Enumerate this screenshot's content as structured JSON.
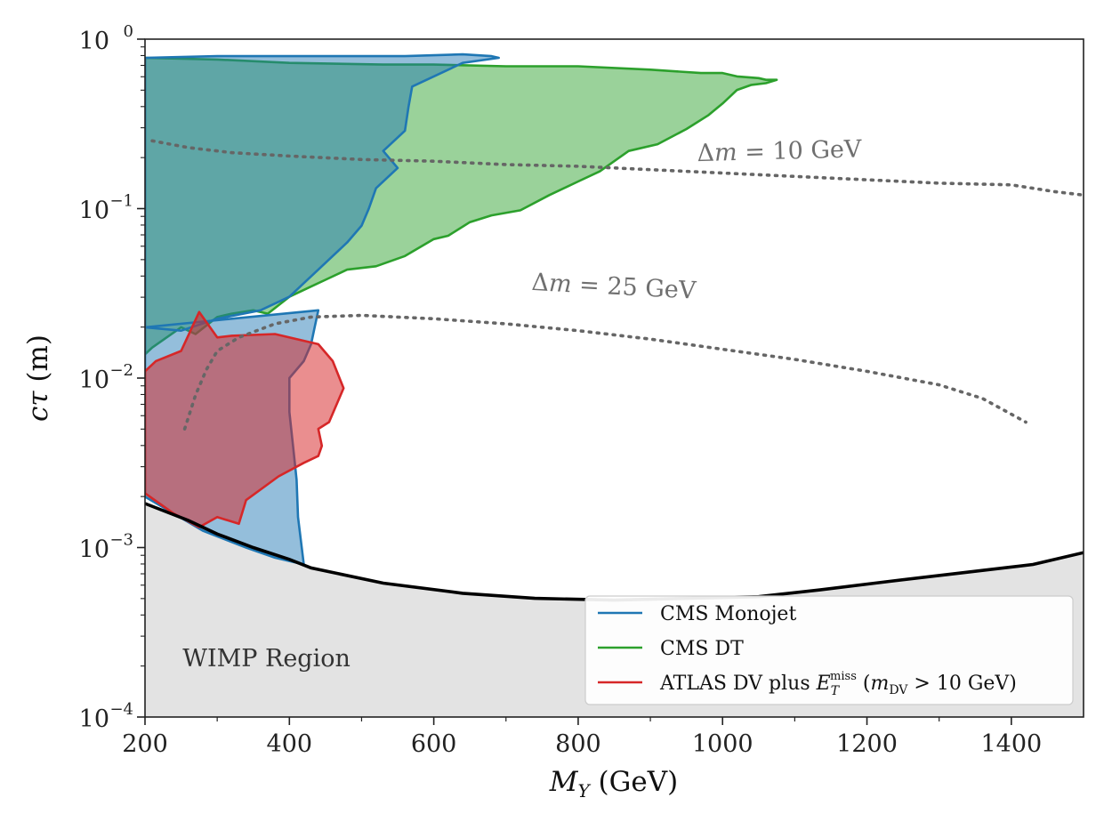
{
  "chart_data": {
    "type": "area",
    "xlabel": "M_Y (GeV)",
    "ylabel": "cτ (m)",
    "xlim": [
      200,
      1500
    ],
    "ylim_log10": [
      -4,
      0
    ],
    "x_ticks": [
      200,
      400,
      600,
      800,
      1000,
      1200,
      1400
    ],
    "x_tick_labels": [
      "200",
      "400",
      "600",
      "800",
      "1000",
      "1200",
      "1400"
    ],
    "y_ticks_log10": [
      -4,
      -3,
      -2,
      -1,
      0
    ],
    "y_tick_labels": [
      {
        "base": "10",
        "exp": "−4"
      },
      {
        "base": "10",
        "exp": "−3"
      },
      {
        "base": "10",
        "exp": "−2"
      },
      {
        "base": "10",
        "exp": "−1"
      },
      {
        "base": "10",
        "exp": "0"
      }
    ],
    "colors": {
      "monojet": "#1f77b4",
      "dt": "#2ca02c",
      "atlas": "#d62728",
      "wimp_fill": "#e3e3e3",
      "boundary": "#000000",
      "dotted": "#666666"
    },
    "regions": [
      {
        "key": "dt",
        "name": "CMS DT",
        "points": [
          [
            200,
            -1.86
          ],
          [
            210,
            -1.82
          ],
          [
            250,
            -1.7
          ],
          [
            270,
            -1.74
          ],
          [
            300,
            -1.64
          ],
          [
            320,
            -1.62
          ],
          [
            350,
            -1.6
          ],
          [
            370,
            -1.62
          ],
          [
            400,
            -1.52
          ],
          [
            430,
            -1.46
          ],
          [
            450,
            -1.42
          ],
          [
            480,
            -1.36
          ],
          [
            520,
            -1.34
          ],
          [
            560,
            -1.28
          ],
          [
            600,
            -1.18
          ],
          [
            620,
            -1.16
          ],
          [
            650,
            -1.08
          ],
          [
            680,
            -1.04
          ],
          [
            720,
            -1.01
          ],
          [
            760,
            -0.92
          ],
          [
            800,
            -0.84
          ],
          [
            830,
            -0.78
          ],
          [
            870,
            -0.66
          ],
          [
            910,
            -0.62
          ],
          [
            950,
            -0.53
          ],
          [
            980,
            -0.45
          ],
          [
            1000,
            -0.38
          ],
          [
            1010,
            -0.34
          ],
          [
            1020,
            -0.3
          ],
          [
            1040,
            -0.27
          ],
          [
            1060,
            -0.26
          ],
          [
            1075,
            -0.24
          ],
          [
            1060,
            -0.24
          ],
          [
            1050,
            -0.23
          ],
          [
            1020,
            -0.22
          ],
          [
            1000,
            -0.2
          ],
          [
            970,
            -0.2
          ],
          [
            900,
            -0.18
          ],
          [
            800,
            -0.16
          ],
          [
            700,
            -0.16
          ],
          [
            600,
            -0.15
          ],
          [
            530,
            -0.15
          ],
          [
            400,
            -0.14
          ],
          [
            300,
            -0.12
          ],
          [
            200,
            -0.11
          ]
        ]
      },
      {
        "key": "monojet",
        "name": "CMS Monojet",
        "points": [
          [
            200,
            -1.7
          ],
          [
            250,
            -1.72
          ],
          [
            300,
            -1.65
          ],
          [
            360,
            -1.6
          ],
          [
            400,
            -1.52
          ],
          [
            420,
            -1.44
          ],
          [
            440,
            -1.36
          ],
          [
            460,
            -1.28
          ],
          [
            480,
            -1.2
          ],
          [
            500,
            -1.1
          ],
          [
            510,
            -1.0
          ],
          [
            520,
            -0.88
          ],
          [
            550,
            -0.76
          ],
          [
            530,
            -0.66
          ],
          [
            560,
            -0.54
          ],
          [
            565,
            -0.4
          ],
          [
            570,
            -0.28
          ],
          [
            600,
            -0.22
          ],
          [
            640,
            -0.14
          ],
          [
            690,
            -0.11
          ],
          [
            680,
            -0.1
          ],
          [
            640,
            -0.09
          ],
          [
            560,
            -0.1
          ],
          [
            500,
            -0.1
          ],
          [
            400,
            -0.1
          ],
          [
            300,
            -0.1
          ],
          [
            200,
            -0.11
          ],
          [
            200,
            -2.7
          ],
          [
            240,
            -2.8
          ],
          [
            280,
            -2.9
          ],
          [
            340,
            -3.0
          ],
          [
            380,
            -3.06
          ],
          [
            420,
            -3.1
          ],
          [
            412,
            -2.82
          ],
          [
            410,
            -2.6
          ],
          [
            405,
            -2.4
          ],
          [
            400,
            -2.2
          ],
          [
            400,
            -2.0
          ],
          [
            420,
            -1.9
          ],
          [
            430,
            -1.8
          ],
          [
            435,
            -1.7
          ],
          [
            440,
            -1.6
          ]
        ]
      },
      {
        "key": "atlas",
        "name": "ATLAS DV plus E_T^miss (m_DV > 10 GeV)",
        "points": [
          [
            200,
            -1.96
          ],
          [
            215,
            -1.9
          ],
          [
            250,
            -1.84
          ],
          [
            275,
            -1.61
          ],
          [
            300,
            -1.76
          ],
          [
            320,
            -1.75
          ],
          [
            380,
            -1.74
          ],
          [
            440,
            -1.8
          ],
          [
            460,
            -1.9
          ],
          [
            475,
            -2.06
          ],
          [
            455,
            -2.26
          ],
          [
            440,
            -2.3
          ],
          [
            445,
            -2.4
          ],
          [
            440,
            -2.46
          ],
          [
            420,
            -2.5
          ],
          [
            385,
            -2.58
          ],
          [
            340,
            -2.72
          ],
          [
            330,
            -2.86
          ],
          [
            300,
            -2.82
          ],
          [
            275,
            -2.88
          ],
          [
            240,
            -2.8
          ],
          [
            200,
            -2.68
          ]
        ]
      }
    ],
    "wimp_boundary": {
      "x": [
        200,
        260,
        300,
        350,
        400,
        430,
        530,
        640,
        740,
        850,
        950,
        1050,
        1135,
        1230,
        1330,
        1430,
        1500
      ],
      "log10_y": [
        -2.74,
        -2.84,
        -2.92,
        -3.0,
        -3.07,
        -3.12,
        -3.21,
        -3.27,
        -3.3,
        -3.31,
        -3.3,
        -3.29,
        -3.25,
        -3.2,
        -3.15,
        -3.1,
        -3.03
      ]
    },
    "dotted_curves": [
      {
        "label": "Δm = 10 GeV",
        "x": [
          210,
          260,
          320,
          400,
          500,
          600,
          700,
          800,
          900,
          1000,
          1100,
          1200,
          1300,
          1400,
          1460,
          1500
        ],
        "log10_y": [
          -0.6,
          -0.64,
          -0.67,
          -0.69,
          -0.71,
          -0.72,
          -0.74,
          -0.75,
          -0.77,
          -0.79,
          -0.81,
          -0.83,
          -0.85,
          -0.86,
          -0.9,
          -0.92
        ]
      },
      {
        "label": "Δm = 25 GeV",
        "x": [
          255,
          270,
          285,
          300,
          330,
          380,
          430,
          500,
          600,
          700,
          800,
          900,
          1000,
          1100,
          1200,
          1300,
          1360,
          1420
        ],
        "log10_y": [
          -2.3,
          -2.1,
          -1.95,
          -1.84,
          -1.76,
          -1.68,
          -1.64,
          -1.63,
          -1.65,
          -1.68,
          -1.72,
          -1.77,
          -1.83,
          -1.89,
          -1.96,
          -2.04,
          -2.12,
          -2.26
        ]
      }
    ],
    "annotations": {
      "dm10": {
        "prefix": "Δ",
        "var": "m",
        "rest": " = 10 GeV",
        "at": [
          965,
          -0.72
        ]
      },
      "dm25": {
        "prefix": "Δ",
        "var": "m",
        "rest": " = 25 GeV",
        "at": [
          735,
          -1.48
        ]
      },
      "wimp": {
        "text": "WIMP Region",
        "at": [
          252,
          -3.7
        ]
      }
    },
    "axis_labels": {
      "x": {
        "var": "M",
        "sub": "Y",
        "rest": " (GeV)"
      },
      "y": {
        "var": "cτ",
        "rest": " (m)"
      }
    },
    "legend": {
      "placement": "lower-right",
      "entries": [
        {
          "key": "monojet",
          "label": "CMS Monojet"
        },
        {
          "key": "dt",
          "label": "CMS DT"
        },
        {
          "key": "atlas",
          "label": "ATLAS DV plus ",
          "math_var": "E",
          "math_sub": "T",
          "math_sup": "miss",
          "paren_open": " (",
          "paren_var": "m",
          "paren_sub": "DV",
          "paren_rest": " > 10 GeV)"
        }
      ]
    }
  }
}
